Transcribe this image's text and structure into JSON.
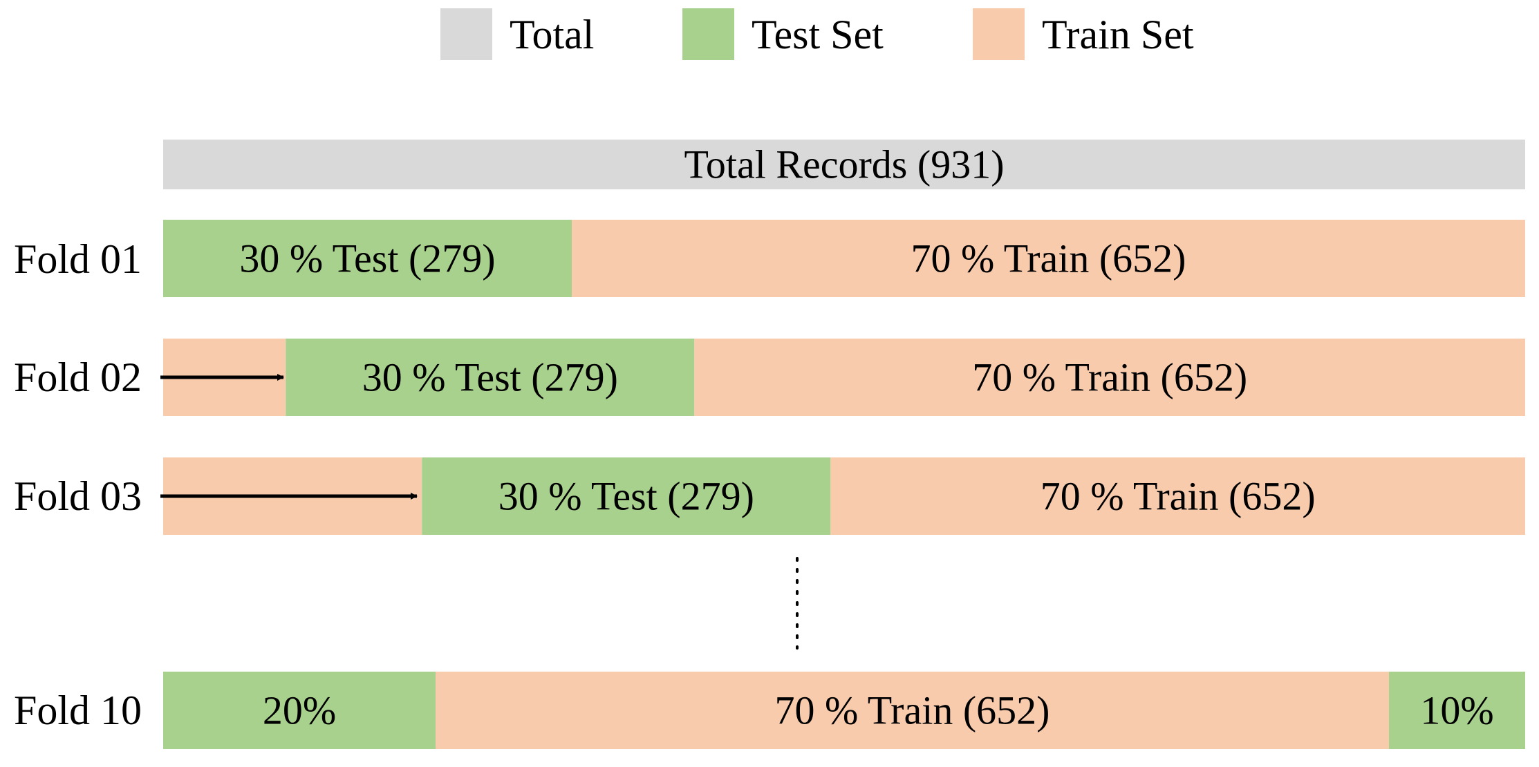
{
  "colors": {
    "total": "#d9d9d9",
    "test": "#a9d18e",
    "train": "#f8cbad",
    "text": "#000000",
    "arrow": "#000000"
  },
  "legend": [
    {
      "key": "total",
      "label": "Total"
    },
    {
      "key": "test",
      "label": "Test Set"
    },
    {
      "key": "train",
      "label": "Train Set"
    }
  ],
  "total_bar": {
    "label": "Total Records (931)",
    "count": 931
  },
  "folds": [
    {
      "label": "Fold 01",
      "arrow": false,
      "segments": [
        {
          "type": "test",
          "percent": 30,
          "label": "30 % Test (279)"
        },
        {
          "type": "train",
          "percent": 70,
          "label": "70 % Train (652)"
        }
      ]
    },
    {
      "label": "Fold 02",
      "arrow": true,
      "segments": [
        {
          "type": "train",
          "percent": 9,
          "label": ""
        },
        {
          "type": "test",
          "percent": 30,
          "label": "30 % Test (279)"
        },
        {
          "type": "train",
          "percent": 61,
          "label": "70 % Train (652)"
        }
      ]
    },
    {
      "label": "Fold 03",
      "arrow": true,
      "segments": [
        {
          "type": "train",
          "percent": 19,
          "label": ""
        },
        {
          "type": "test",
          "percent": 30,
          "label": "30 % Test (279)"
        },
        {
          "type": "train",
          "percent": 51,
          "label": "70 % Train (652)"
        }
      ]
    },
    {
      "label": "Fold 10",
      "arrow": false,
      "segments": [
        {
          "type": "test",
          "percent": 20,
          "label": "20%"
        },
        {
          "type": "train",
          "percent": 70,
          "label": "70 % Train (652)"
        },
        {
          "type": "test",
          "percent": 10,
          "label": "10%"
        }
      ]
    }
  ]
}
